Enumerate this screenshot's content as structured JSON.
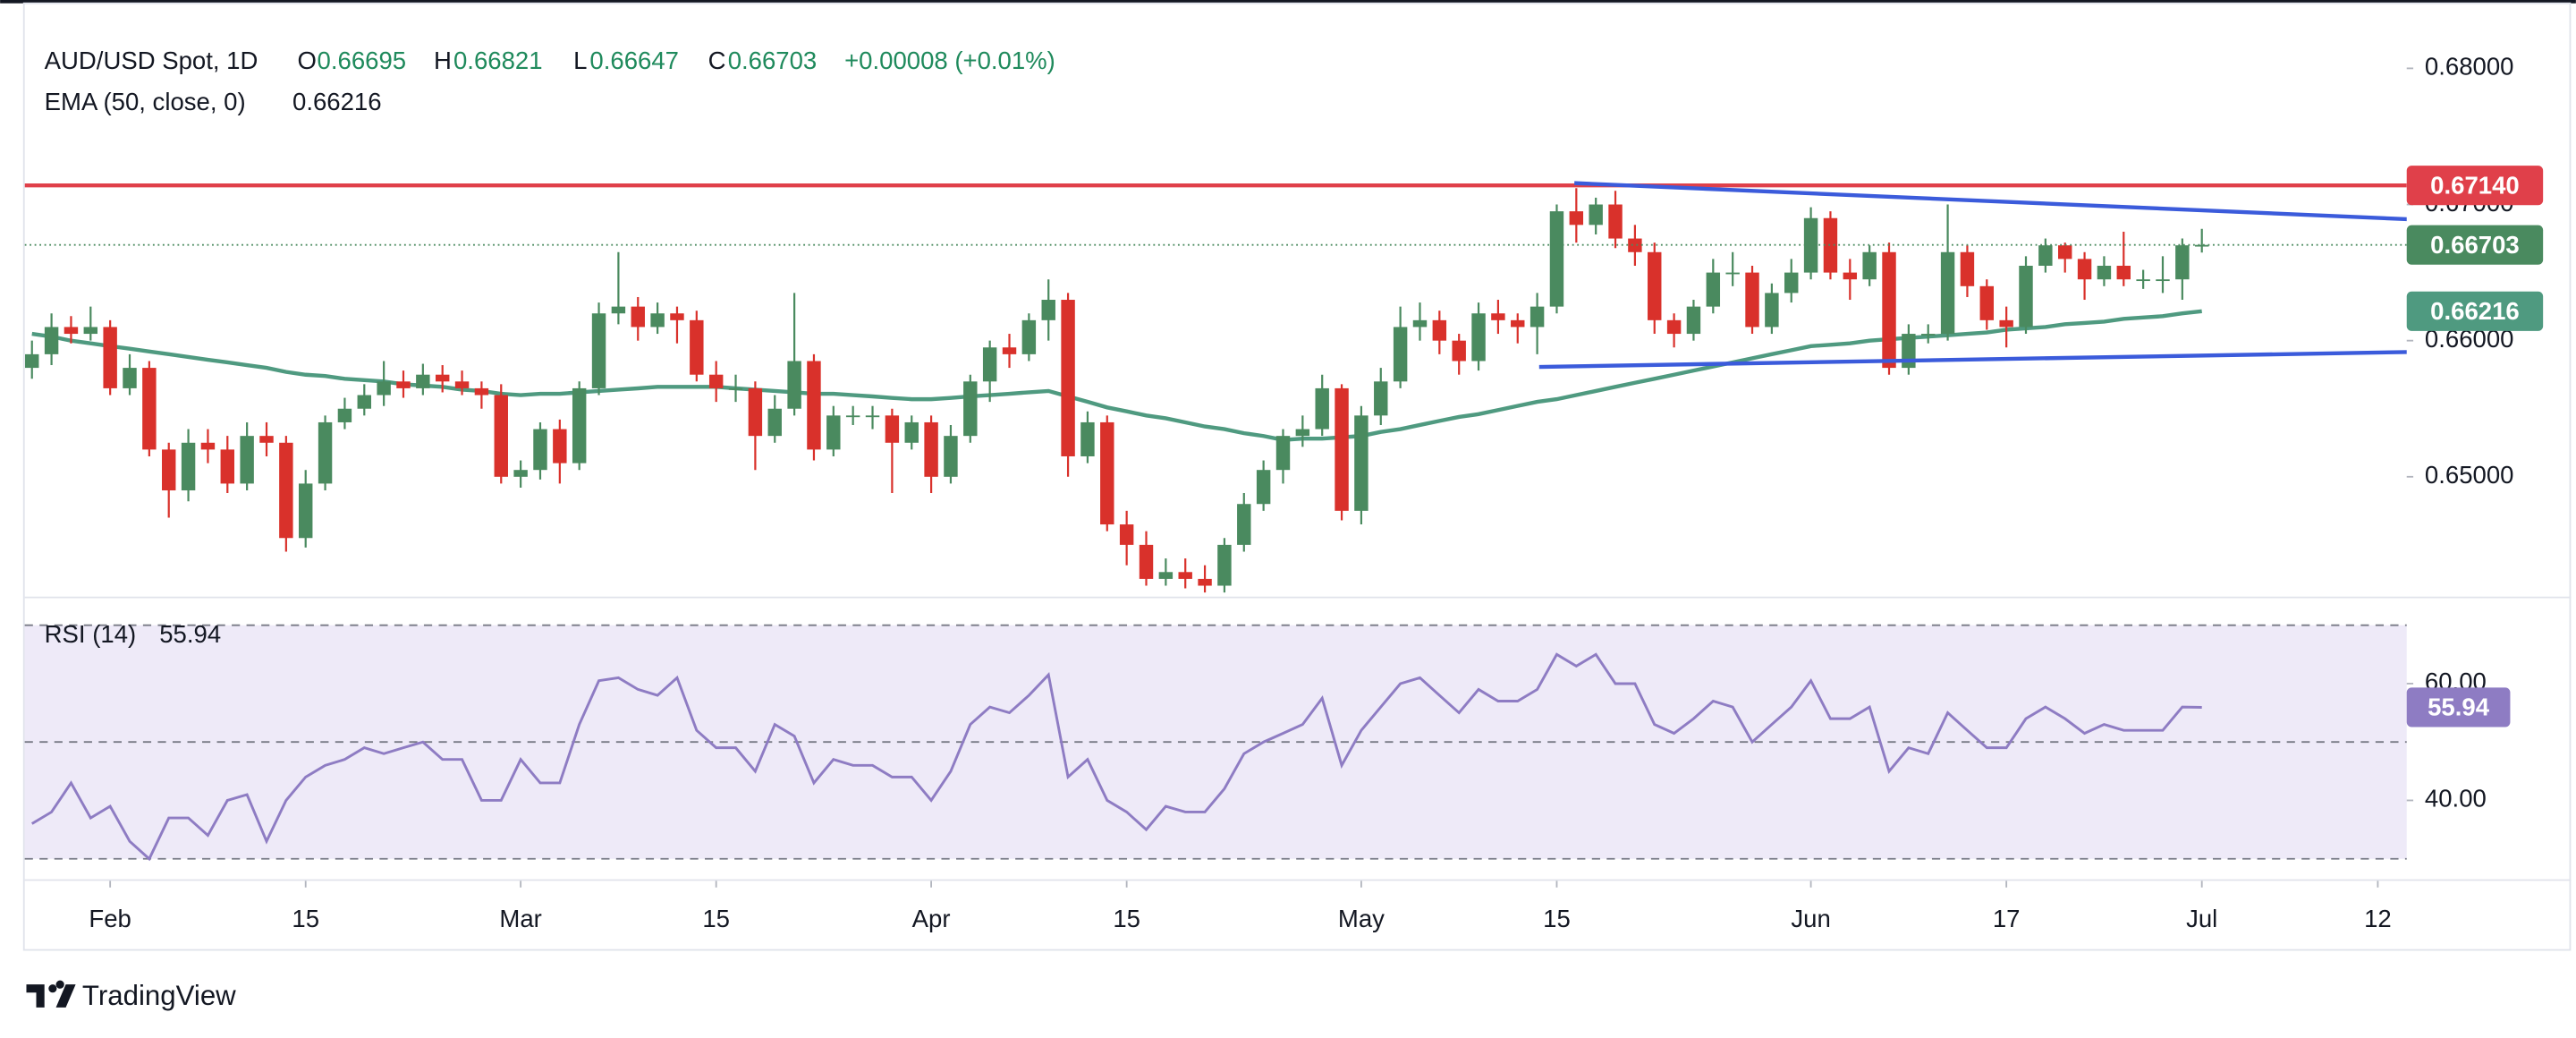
{
  "header": {
    "symbol": "AUD/USD Spot, 1D",
    "open_label": "O",
    "high_label": "H",
    "low_label": "L",
    "close_label": "C",
    "change": "+0.00008 (+0.01%)"
  },
  "footer": {
    "brand": "TradingView"
  },
  "chart_data": [
    {
      "type": "candlestick",
      "categories": [
        null,
        null,
        null,
        null,
        null,
        null,
        null,
        null,
        null,
        null,
        null,
        null,
        null,
        null,
        null,
        null,
        null,
        null,
        null,
        null,
        null,
        null,
        null,
        null,
        null,
        null,
        null,
        null,
        null,
        null,
        null,
        null,
        null,
        null,
        null,
        null,
        null,
        null,
        null,
        null,
        null,
        null,
        null,
        null,
        null,
        null,
        null,
        null,
        null,
        null,
        null,
        null,
        null,
        null,
        null,
        null,
        null,
        null,
        null,
        null,
        null,
        null,
        null,
        null,
        null,
        null,
        null,
        null,
        null,
        null,
        null,
        null,
        null,
        null,
        null,
        null,
        null,
        null,
        null,
        null,
        null,
        null,
        null,
        null,
        null,
        null,
        null,
        null,
        null,
        null,
        null,
        null,
        null,
        null,
        null,
        null,
        null,
        null,
        null,
        null,
        null,
        null,
        null,
        null,
        null,
        null,
        null,
        null,
        null,
        null,
        null,
        null
      ],
      "open": [
        0.658,
        0.659,
        0.661,
        0.6605,
        0.661,
        0.6565,
        0.658,
        0.652,
        0.649,
        0.6525,
        0.652,
        0.6495,
        0.653,
        0.6525,
        0.6455,
        0.6495,
        0.654,
        0.655,
        0.656,
        0.657,
        0.6565,
        0.6575,
        0.657,
        0.6565,
        0.656,
        0.65,
        0.6505,
        0.6535,
        0.651,
        0.6565,
        0.662,
        0.6625,
        0.661,
        0.662,
        0.6615,
        0.6575,
        0.6565,
        0.6565,
        0.653,
        0.655,
        0.6585,
        0.652,
        0.6545,
        0.6545,
        0.6545,
        0.6525,
        0.654,
        0.65,
        0.653,
        0.657,
        0.6595,
        0.659,
        0.6615,
        0.663,
        0.6515,
        0.654,
        0.6465,
        0.645,
        0.6425,
        0.643,
        0.6425,
        0.642,
        0.645,
        0.648,
        0.6505,
        0.653,
        0.6535,
        0.6565,
        0.6475,
        0.6545,
        0.657,
        0.661,
        0.6615,
        0.66,
        0.6585,
        0.662,
        0.6615,
        0.661,
        0.6625,
        0.6695,
        0.6685,
        0.67,
        0.6675,
        0.6665,
        0.6615,
        0.6605,
        0.6625,
        0.665,
        0.665,
        0.661,
        0.6635,
        0.665,
        0.669,
        0.665,
        0.6645,
        0.6665,
        0.658,
        0.6605,
        0.6605,
        0.6665,
        0.664,
        0.6615,
        0.661,
        0.6655,
        0.667,
        0.666,
        0.6645,
        0.6655,
        0.6645,
        0.6645,
        0.6645,
        0.66695
      ],
      "high": [
        0.66,
        0.662,
        0.6618,
        0.6625,
        0.6615,
        0.659,
        0.6585,
        0.6525,
        0.6535,
        0.6535,
        0.653,
        0.654,
        0.654,
        0.653,
        0.6505,
        0.6545,
        0.6558,
        0.6568,
        0.6585,
        0.6578,
        0.6583,
        0.6582,
        0.6578,
        0.657,
        0.6568,
        0.6512,
        0.654,
        0.6542,
        0.657,
        0.6628,
        0.6665,
        0.6632,
        0.6628,
        0.6625,
        0.6622,
        0.6585,
        0.6575,
        0.657,
        0.656,
        0.6635,
        0.659,
        0.6552,
        0.6552,
        0.6552,
        0.655,
        0.6545,
        0.6545,
        0.6538,
        0.6575,
        0.66,
        0.6605,
        0.662,
        0.6645,
        0.6635,
        0.6548,
        0.6545,
        0.6475,
        0.646,
        0.644,
        0.644,
        0.6435,
        0.6455,
        0.6488,
        0.6512,
        0.6535,
        0.6545,
        0.6575,
        0.6568,
        0.6552,
        0.658,
        0.6625,
        0.6628,
        0.6622,
        0.6605,
        0.6628,
        0.663,
        0.662,
        0.6635,
        0.67,
        0.6712,
        0.6705,
        0.671,
        0.6685,
        0.6672,
        0.662,
        0.663,
        0.666,
        0.6665,
        0.6655,
        0.6642,
        0.666,
        0.6698,
        0.6695,
        0.666,
        0.667,
        0.6672,
        0.6612,
        0.6612,
        0.67,
        0.667,
        0.6645,
        0.6625,
        0.6662,
        0.6675,
        0.6672,
        0.6665,
        0.6662,
        0.668,
        0.6652,
        0.6662,
        0.6675,
        0.66821
      ],
      "low": [
        0.6572,
        0.6582,
        0.6598,
        0.66,
        0.656,
        0.656,
        0.6515,
        0.647,
        0.6482,
        0.651,
        0.6488,
        0.649,
        0.6515,
        0.6445,
        0.6448,
        0.649,
        0.6535,
        0.6545,
        0.6552,
        0.6558,
        0.656,
        0.6562,
        0.656,
        0.655,
        0.6495,
        0.6492,
        0.6498,
        0.6495,
        0.6505,
        0.656,
        0.6612,
        0.66,
        0.6605,
        0.6598,
        0.657,
        0.6555,
        0.6555,
        0.6505,
        0.6525,
        0.6545,
        0.6512,
        0.6515,
        0.6538,
        0.6535,
        0.6488,
        0.652,
        0.6488,
        0.6495,
        0.6525,
        0.6555,
        0.658,
        0.6585,
        0.66,
        0.65,
        0.651,
        0.646,
        0.6435,
        0.642,
        0.642,
        0.6418,
        0.6415,
        0.6415,
        0.6445,
        0.6475,
        0.6495,
        0.6522,
        0.653,
        0.6468,
        0.6465,
        0.6538,
        0.6565,
        0.66,
        0.659,
        0.6575,
        0.6578,
        0.6605,
        0.6598,
        0.659,
        0.662,
        0.6672,
        0.6678,
        0.6668,
        0.6655,
        0.6605,
        0.6595,
        0.66,
        0.662,
        0.664,
        0.6605,
        0.6605,
        0.6628,
        0.6645,
        0.6645,
        0.663,
        0.664,
        0.6575,
        0.6575,
        0.6598,
        0.66,
        0.6632,
        0.6608,
        0.6595,
        0.6605,
        0.665,
        0.665,
        0.663,
        0.664,
        0.664,
        0.6638,
        0.6635,
        0.663,
        0.66647
      ],
      "close": [
        0.659,
        0.661,
        0.6605,
        0.661,
        0.6565,
        0.658,
        0.652,
        0.649,
        0.6525,
        0.652,
        0.6495,
        0.653,
        0.6525,
        0.6455,
        0.6495,
        0.654,
        0.655,
        0.656,
        0.657,
        0.6565,
        0.6575,
        0.657,
        0.6565,
        0.656,
        0.65,
        0.6505,
        0.6535,
        0.651,
        0.6565,
        0.662,
        0.6625,
        0.661,
        0.662,
        0.6615,
        0.6575,
        0.6565,
        0.6565,
        0.653,
        0.655,
        0.6585,
        0.652,
        0.6545,
        0.6545,
        0.6545,
        0.6525,
        0.654,
        0.65,
        0.653,
        0.657,
        0.6595,
        0.659,
        0.6615,
        0.663,
        0.6515,
        0.654,
        0.6465,
        0.645,
        0.6425,
        0.643,
        0.6425,
        0.642,
        0.645,
        0.648,
        0.6505,
        0.653,
        0.6535,
        0.6565,
        0.6475,
        0.6545,
        0.657,
        0.661,
        0.6615,
        0.66,
        0.6585,
        0.662,
        0.6615,
        0.661,
        0.6625,
        0.6695,
        0.6685,
        0.67,
        0.6675,
        0.6665,
        0.6615,
        0.6605,
        0.6625,
        0.665,
        0.665,
        0.661,
        0.6635,
        0.665,
        0.669,
        0.665,
        0.6645,
        0.6665,
        0.658,
        0.6605,
        0.6605,
        0.6665,
        0.664,
        0.6615,
        0.661,
        0.6655,
        0.667,
        0.666,
        0.6645,
        0.6655,
        0.6645,
        0.6645,
        0.6645,
        0.667,
        0.66703
      ],
      "up_color": "#4a8a5f",
      "down_color": "#d9312b",
      "ema": {
        "name": "EMA (50, close, 0)",
        "color": "#4f9a80",
        "values": [
          0.6605,
          0.6603,
          0.66,
          0.6598,
          0.6596,
          0.6594,
          0.6592,
          0.659,
          0.6588,
          0.6586,
          0.6584,
          0.6582,
          0.658,
          0.6577,
          0.6575,
          0.6574,
          0.6572,
          0.6571,
          0.657,
          0.6568,
          0.6567,
          0.6566,
          0.6564,
          0.6563,
          0.6561,
          0.656,
          0.6561,
          0.6561,
          0.6562,
          0.6563,
          0.6564,
          0.6565,
          0.6566,
          0.6566,
          0.6566,
          0.6566,
          0.6565,
          0.6564,
          0.6563,
          0.6562,
          0.6561,
          0.6561,
          0.656,
          0.6559,
          0.6558,
          0.6557,
          0.6557,
          0.6558,
          0.6559,
          0.656,
          0.6561,
          0.6562,
          0.6563,
          0.6559,
          0.6555,
          0.6551,
          0.6548,
          0.6545,
          0.6543,
          0.654,
          0.6537,
          0.6535,
          0.6532,
          0.653,
          0.6527,
          0.6528,
          0.6528,
          0.6529,
          0.653,
          0.6533,
          0.6535,
          0.6538,
          0.6541,
          0.6544,
          0.6546,
          0.6549,
          0.6552,
          0.6555,
          0.6557,
          0.656,
          0.6563,
          0.6566,
          0.6569,
          0.6572,
          0.6575,
          0.6578,
          0.6581,
          0.6584,
          0.6587,
          0.659,
          0.6593,
          0.6596,
          0.6597,
          0.6598,
          0.66,
          0.6601,
          0.6602,
          0.6603,
          0.6604,
          0.6605,
          0.6606,
          0.6608,
          0.6609,
          0.661,
          0.6612,
          0.6613,
          0.6614,
          0.6616,
          0.6617,
          0.6618,
          0.662,
          0.66216
        ]
      },
      "annotations": [
        {
          "type": "hline",
          "color": "#e0404a",
          "value": {
            "value": 0.6714,
            "label": "0.67140"
          }
        },
        {
          "type": "trendline",
          "color": "#3b5bdb",
          "points": [
            [
              78.9,
              0.67157
            ],
            [
              121.5,
              0.66892
            ]
          ]
        },
        {
          "type": "trendline",
          "color": "#3b5bdb",
          "points": [
            [
              77.1,
              0.65807
            ],
            [
              121.5,
              0.65916
            ]
          ]
        }
      ],
      "ylim": [
        0.6412,
        0.6849
      ],
      "yticks": [
        {
          "value": 0.68,
          "label": "0.68000"
        },
        {
          "value": 0.67,
          "label": "0.67000"
        },
        {
          "value": 0.66,
          "label": "0.66000"
        },
        {
          "value": 0.65,
          "label": "0.65000"
        }
      ],
      "xticks": [
        {
          "value": 4,
          "label": "Feb"
        },
        {
          "value": 14,
          "label": "15"
        },
        {
          "value": 25,
          "label": "Mar"
        },
        {
          "value": 35,
          "label": "15"
        },
        {
          "value": 46,
          "label": "Apr"
        },
        {
          "value": 56,
          "label": "15"
        },
        {
          "value": 68,
          "label": "May"
        },
        {
          "value": 78,
          "label": "15"
        },
        {
          "value": 91,
          "label": "Jun"
        },
        {
          "value": 101,
          "label": "17"
        },
        {
          "value": 111,
          "label": "Jul"
        },
        {
          "value": 120,
          "label": "12"
        }
      ],
      "grid": false
    },
    {
      "type": "line",
      "name": "RSI (14)",
      "color": "#8e7cc3",
      "band_color": "#eeeaf8",
      "values": [
        36,
        38,
        43,
        37,
        39,
        33,
        30,
        37,
        37,
        34,
        40,
        41,
        33,
        40,
        44,
        46,
        47,
        49,
        48,
        49,
        50,
        47,
        47,
        40,
        40,
        47,
        43,
        43,
        53,
        60.5,
        61,
        59,
        58,
        61,
        52,
        49,
        49,
        45,
        53,
        51,
        43,
        47,
        46,
        46,
        44,
        44,
        40,
        45,
        53,
        56,
        55,
        58,
        61.5,
        44,
        47,
        40,
        38,
        35,
        39,
        38,
        38,
        42,
        48,
        50,
        51.5,
        53,
        57.5,
        46,
        52,
        56,
        60,
        61,
        58,
        55,
        59,
        57,
        57,
        59,
        65,
        63,
        65,
        60,
        60,
        53,
        51.5,
        54,
        57,
        56,
        50,
        53,
        56,
        60.5,
        54,
        54,
        56,
        45,
        49,
        48,
        55,
        52,
        49,
        49,
        54,
        56,
        54,
        51.5,
        53,
        52,
        52,
        52,
        56,
        55.94
      ],
      "levels": [
        70,
        50,
        30
      ],
      "ylim": [
        26.5,
        74.9
      ],
      "yticks": [
        {
          "value": 60,
          "label": "60.00"
        },
        {
          "value": 40,
          "label": "40.00"
        }
      ]
    }
  ]
}
